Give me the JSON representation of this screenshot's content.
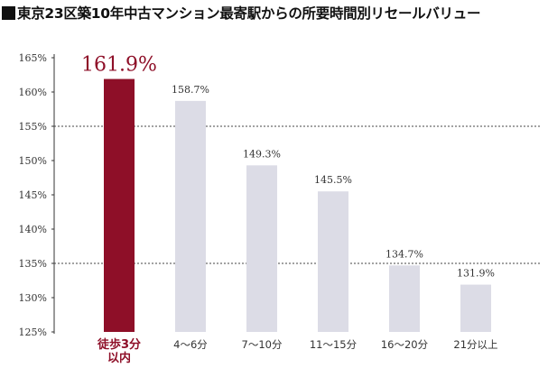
{
  "title": "東京23区築10年中古マンション最寄駅からの所要時間別リセールバリュー",
  "chart_data": {
    "type": "bar",
    "categories": [
      "徒歩3分\n以内",
      "4〜6分",
      "7〜10分",
      "11〜15分",
      "16〜20分",
      "21分以上"
    ],
    "values": [
      161.9,
      158.7,
      149.3,
      145.5,
      134.7,
      131.9
    ],
    "value_labels": [
      "161.9%",
      "158.7%",
      "149.3%",
      "145.5%",
      "134.7%",
      "131.9%"
    ],
    "highlight_index": 0,
    "ylim": [
      125,
      165
    ],
    "yticks": [
      125,
      130,
      135,
      140,
      145,
      150,
      155,
      160,
      165
    ],
    "ytick_labels": [
      "125%",
      "130%",
      "135%",
      "140%",
      "145%",
      "150%",
      "155%",
      "160%",
      "165%"
    ],
    "dashed_gridlines_at": [
      155,
      135
    ],
    "colors": {
      "highlight": "#8e0f28",
      "normal": "#dcdce6",
      "axis": "#333333",
      "text": "#333333"
    }
  }
}
